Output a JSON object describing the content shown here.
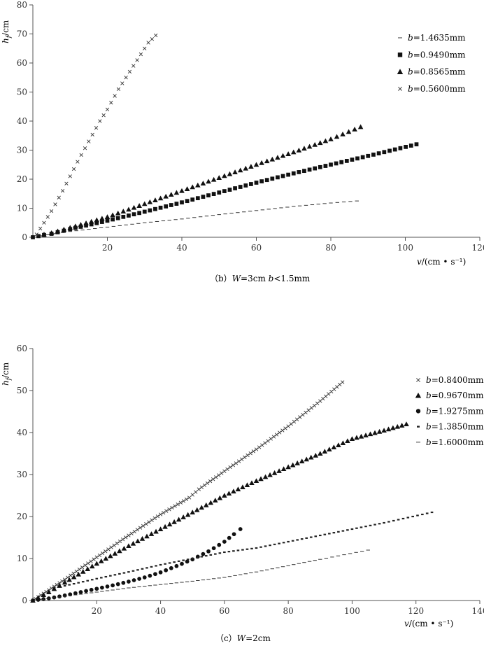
{
  "chart_data": [
    {
      "type": "scatter",
      "panel_id": "b",
      "caption": "（b）W=3cm  b<1.5mm",
      "ylabel": "h_f/cm",
      "xlabel": "v/(cm • s⁻¹)",
      "xlim": [
        0,
        120
      ],
      "ylim": [
        0,
        80
      ],
      "xticks": [
        20,
        40,
        60,
        80,
        100,
        120
      ],
      "yticks": [
        0,
        10,
        20,
        30,
        40,
        50,
        60,
        70,
        80
      ],
      "legend_position": "right",
      "series": [
        {
          "name": "b=1.4635mm",
          "marker": "dash",
          "x": [
            2,
            10,
            20,
            30,
            40,
            50,
            60,
            70,
            80,
            87
          ],
          "y": [
            0.5,
            2,
            3.5,
            5,
            6.3,
            7.8,
            9.2,
            10.6,
            11.8,
            12.5
          ]
        },
        {
          "name": "b=0.9490mm",
          "marker": "square",
          "x": [
            0,
            3,
            5,
            10,
            20,
            30,
            40,
            50,
            60,
            70,
            80,
            90,
            103
          ],
          "y": [
            0,
            0.8,
            1.2,
            2.8,
            5.7,
            8.8,
            12,
            15.4,
            18.8,
            22,
            25,
            28,
            32
          ]
        },
        {
          "name": "b=0.8565mm",
          "marker": "triangle",
          "x": [
            3,
            5,
            10,
            20,
            30,
            40,
            50,
            60,
            70,
            80,
            88
          ],
          "y": [
            1,
            1.5,
            3.3,
            7,
            11.5,
            16,
            20.5,
            25,
            29.3,
            33.8,
            38
          ]
        },
        {
          "name": "b=0.5600mm",
          "marker": "cross",
          "x": [
            1,
            2,
            3,
            5,
            8,
            10,
            12,
            15,
            18,
            20,
            23,
            26,
            28,
            31,
            33
          ],
          "y": [
            1,
            3,
            5,
            9,
            16,
            21,
            26,
            33,
            40,
            44,
            51,
            57,
            61,
            67,
            69.5
          ]
        }
      ]
    },
    {
      "type": "scatter",
      "panel_id": "c",
      "caption": "（c）W=2cm",
      "ylabel": "h_f/cm",
      "xlabel": "v/(cm • s⁻¹)",
      "xlim": [
        0,
        140
      ],
      "ylim": [
        0,
        60
      ],
      "xticks": [
        20,
        40,
        60,
        80,
        100,
        120,
        140
      ],
      "yticks": [
        0,
        10,
        20,
        30,
        40,
        50,
        60
      ],
      "legend_position": "right",
      "series": [
        {
          "name": "b=0.8400mm",
          "marker": "cross",
          "x": [
            0,
            5,
            10,
            20,
            30,
            40,
            49,
            52,
            60,
            70,
            80,
            90,
            97
          ],
          "y": [
            0,
            2.5,
            5,
            10.3,
            15.5,
            20.5,
            24.5,
            26.5,
            30.8,
            36,
            41.5,
            47.5,
            52
          ]
        },
        {
          "name": "b=0.9670mm",
          "marker": "triangle",
          "x": [
            0,
            5,
            10,
            20,
            30,
            40,
            50,
            60,
            70,
            80,
            90,
            100,
            110,
            117
          ],
          "y": [
            0,
            2,
            4.3,
            8.8,
            13,
            17,
            21,
            25,
            28.5,
            31.8,
            35,
            38.5,
            40.5,
            42
          ]
        },
        {
          "name": "b=1.9275mm",
          "marker": "circle",
          "x": [
            0,
            5,
            10,
            15,
            20,
            25,
            30,
            35,
            40,
            45,
            50,
            55,
            60,
            63,
            65
          ],
          "y": [
            0,
            0.5,
            1.2,
            2,
            2.8,
            3.6,
            4.5,
            5.5,
            6.7,
            8.2,
            9.8,
            11.7,
            14,
            15.8,
            17
          ]
        },
        {
          "name": "b=1.3850mm",
          "marker": "dot",
          "x": [
            10,
            20,
            30,
            40,
            50,
            60,
            70,
            80,
            90,
            100,
            110,
            125
          ],
          "y": [
            3.5,
            5.2,
            6.8,
            8.5,
            10,
            11.5,
            12.5,
            14,
            15.5,
            17,
            18.5,
            21
          ]
        },
        {
          "name": "b=1.6000mm",
          "marker": "dash",
          "x": [
            3,
            10,
            20,
            30,
            40,
            50,
            60,
            70,
            80,
            90,
            105
          ],
          "y": [
            0.3,
            1,
            2,
            3,
            3.8,
            4.6,
            5.5,
            6.8,
            8.3,
            9.8,
            12
          ]
        }
      ]
    }
  ]
}
